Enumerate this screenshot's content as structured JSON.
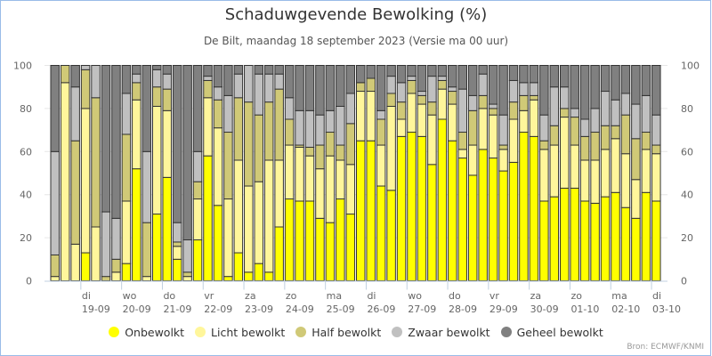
{
  "header": {
    "title": "Schaduwgevende Bewolking (%)",
    "subtitle": "De Bilt, maandag 18 september 2023 (Versie ma 00 uur)"
  },
  "source": "Bron: ECMWF/KNMI",
  "chart_data": {
    "type": "bar",
    "stacked": true,
    "title": "Schaduwgevende Bewolking (%)",
    "subtitle": "De Bilt, maandag 18 september 2023 (Versie ma 00 uur)",
    "xlabel": "",
    "ylabel": "",
    "ylim": [
      0,
      100
    ],
    "yticks": [
      0,
      20,
      40,
      60,
      80,
      100
    ],
    "y_axis_both_sides": true,
    "grid": true,
    "legend_position": "bottom",
    "interval_hours": 6,
    "bars_before_first_day_tick": 3,
    "day_ticks": [
      {
        "day": "di",
        "date": "19-09"
      },
      {
        "day": "wo",
        "date": "20-09"
      },
      {
        "day": "do",
        "date": "21-09"
      },
      {
        "day": "vr",
        "date": "22-09"
      },
      {
        "day": "za",
        "date": "23-09"
      },
      {
        "day": "zo",
        "date": "24-09"
      },
      {
        "day": "ma",
        "date": "25-09"
      },
      {
        "day": "di",
        "date": "26-09"
      },
      {
        "day": "wo",
        "date": "27-09"
      },
      {
        "day": "do",
        "date": "28-09"
      },
      {
        "day": "vr",
        "date": "29-09"
      },
      {
        "day": "za",
        "date": "30-09"
      },
      {
        "day": "zo",
        "date": "01-10"
      },
      {
        "day": "ma",
        "date": "02-10"
      },
      {
        "day": "di",
        "date": "03-10"
      }
    ],
    "series": [
      {
        "name": "Onbewolkt",
        "color": "#ffff00",
        "values": [
          0,
          0,
          0,
          13,
          0,
          0,
          0,
          8,
          52,
          0,
          31,
          48,
          10,
          0,
          19,
          58,
          35,
          2,
          13,
          4,
          8,
          4,
          25,
          38,
          37,
          37,
          29,
          27,
          38,
          31,
          65,
          65,
          44,
          42,
          67,
          69,
          67,
          54,
          75,
          65,
          57,
          49,
          61,
          57,
          51,
          55,
          69,
          67,
          37,
          39,
          43,
          43,
          37,
          36,
          39,
          41,
          34,
          29,
          41,
          37
        ]
      },
      {
        "name": "Licht bewolkt",
        "color": "#fff69b",
        "values": [
          2,
          92,
          17,
          67,
          25,
          0,
          4,
          29,
          32,
          2,
          50,
          31,
          6,
          2,
          19,
          27,
          36,
          36,
          43,
          40,
          38,
          52,
          31,
          25,
          25,
          21,
          23,
          31,
          18,
          23,
          23,
          23,
          19,
          39,
          8,
          18,
          15,
          23,
          14,
          17,
          4,
          14,
          19,
          20,
          10,
          20,
          10,
          17,
          24,
          24,
          33,
          20,
          19,
          20,
          22,
          25,
          25,
          18,
          20,
          22
        ]
      },
      {
        "name": "Half bewolkt",
        "color": "#d0c977",
        "values": [
          10,
          8,
          48,
          18,
          60,
          2,
          6,
          31,
          8,
          25,
          9,
          10,
          2,
          2,
          8,
          8,
          13,
          31,
          29,
          39,
          31,
          27,
          33,
          12,
          1,
          4,
          11,
          11,
          7,
          19,
          4,
          6,
          12,
          6,
          8,
          6,
          4,
          6,
          4,
          6,
          8,
          16,
          6,
          3,
          2,
          8,
          7,
          2,
          4,
          9,
          4,
          13,
          11,
          13,
          11,
          6,
          18,
          19,
          8,
          4
        ]
      },
      {
        "name": "Zwaar bewolkt",
        "color": "#c0c0c0",
        "values": [
          48,
          0,
          25,
          2,
          15,
          30,
          19,
          19,
          4,
          33,
          8,
          7,
          9,
          15,
          14,
          2,
          6,
          17,
          11,
          17,
          19,
          13,
          7,
          10,
          16,
          17,
          14,
          10,
          18,
          14,
          0,
          0,
          4,
          8,
          9,
          2,
          2,
          12,
          2,
          2,
          20,
          7,
          10,
          2,
          14,
          10,
          6,
          6,
          12,
          18,
          10,
          4,
          8,
          11,
          16,
          12,
          10,
          16,
          17,
          14
        ]
      },
      {
        "name": "Geheel bewolkt",
        "color": "#808080",
        "values": [
          40,
          0,
          10,
          0,
          0,
          68,
          71,
          13,
          4,
          40,
          2,
          4,
          73,
          81,
          40,
          5,
          10,
          14,
          4,
          0,
          4,
          4,
          4,
          15,
          21,
          21,
          23,
          21,
          19,
          13,
          8,
          6,
          21,
          5,
          8,
          5,
          12,
          5,
          5,
          10,
          11,
          14,
          4,
          18,
          23,
          7,
          8,
          8,
          23,
          10,
          10,
          20,
          25,
          20,
          12,
          16,
          14,
          18,
          14,
          23
        ]
      }
    ]
  }
}
